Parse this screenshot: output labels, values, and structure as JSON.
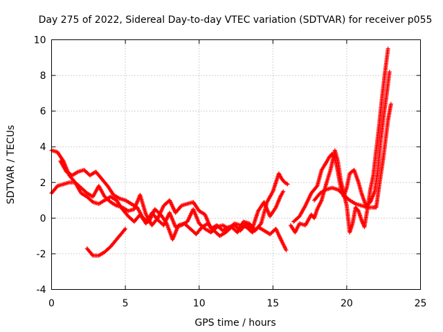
{
  "chart_data": {
    "type": "scatter",
    "title": "Day 275 of 2022, Sidereal Day-to-day VTEC variation (SDTVAR) for receiver p055",
    "xlabel": "GPS time / hours",
    "ylabel": "SDTVAR / TECUs",
    "xlim": [
      0,
      25
    ],
    "ylim": [
      -4,
      10
    ],
    "xticks": [
      0,
      5,
      10,
      15,
      20,
      25
    ],
    "yticks": [
      -4,
      -2,
      0,
      2,
      4,
      6,
      8,
      10
    ],
    "grid": true,
    "marker": "+",
    "series": [
      {
        "name": "SDTVAR",
        "color": "#ff0000",
        "tracks": [
          [
            [
              0.0,
              3.8
            ],
            [
              0.4,
              3.7
            ],
            [
              0.8,
              3.2
            ],
            [
              1.2,
              2.4
            ],
            [
              1.6,
              2.0
            ],
            [
              2.0,
              1.4
            ],
            [
              2.4,
              1.2
            ],
            [
              2.8,
              0.9
            ],
            [
              3.2,
              0.8
            ],
            [
              3.6,
              1.0
            ],
            [
              4.0,
              1.2
            ],
            [
              4.4,
              1.0
            ],
            [
              4.8,
              0.5
            ],
            [
              5.2,
              0.1
            ],
            [
              5.6,
              -0.2
            ],
            [
              6.0,
              0.2
            ],
            [
              6.4,
              -0.3
            ],
            [
              6.8,
              0.3
            ],
            [
              7.2,
              -0.1
            ],
            [
              7.6,
              -0.4
            ],
            [
              8.0,
              0.3
            ],
            [
              8.4,
              -0.5
            ],
            [
              8.8,
              -0.4
            ],
            [
              9.2,
              -0.2
            ],
            [
              9.6,
              0.5
            ],
            [
              10.0,
              -0.3
            ],
            [
              10.4,
              -0.6
            ],
            [
              10.8,
              -0.8
            ],
            [
              11.2,
              -0.5
            ],
            [
              11.6,
              -0.4
            ],
            [
              12.0,
              -0.6
            ],
            [
              12.4,
              -0.3
            ],
            [
              12.8,
              -0.4
            ],
            [
              13.2,
              -0.5
            ],
            [
              13.6,
              -0.8
            ],
            [
              14.0,
              -0.5
            ],
            [
              14.4,
              -0.7
            ],
            [
              14.8,
              -0.9
            ],
            [
              15.2,
              -0.6
            ],
            [
              15.6,
              -1.3
            ],
            [
              15.9,
              -1.8
            ]
          ],
          [
            [
              0.0,
              1.4
            ],
            [
              0.4,
              1.8
            ],
            [
              0.8,
              1.9
            ],
            [
              1.2,
              2.0
            ],
            [
              1.6,
              2.0
            ],
            [
              2.0,
              1.7
            ],
            [
              2.4,
              1.4
            ],
            [
              2.8,
              1.2
            ],
            [
              3.2,
              1.8
            ],
            [
              3.6,
              1.2
            ],
            [
              4.0,
              0.9
            ],
            [
              4.4,
              0.7
            ],
            [
              4.8,
              0.6
            ],
            [
              5.2,
              0.4
            ],
            [
              5.6,
              0.5
            ],
            [
              6.0,
              1.3
            ],
            [
              6.4,
              0.2
            ],
            [
              6.8,
              -0.4
            ],
            [
              7.2,
              0.0
            ],
            [
              7.6,
              0.7
            ],
            [
              8.0,
              1.0
            ],
            [
              8.4,
              0.3
            ],
            [
              8.8,
              0.7
            ],
            [
              9.2,
              0.8
            ],
            [
              9.6,
              0.9
            ],
            [
              10.0,
              0.4
            ],
            [
              10.4,
              0.2
            ],
            [
              10.8,
              -0.6
            ],
            [
              11.2,
              -0.4
            ],
            [
              11.6,
              -0.7
            ],
            [
              12.0,
              -0.5
            ],
            [
              12.4,
              -0.4
            ],
            [
              12.8,
              -0.7
            ],
            [
              13.2,
              -0.3
            ],
            [
              13.6,
              -0.6
            ],
            [
              14.0,
              0.4
            ],
            [
              14.4,
              0.9
            ],
            [
              14.8,
              0.1
            ],
            [
              15.2,
              0.6
            ],
            [
              15.5,
              1.2
            ],
            [
              15.7,
              1.5
            ]
          ],
          [
            [
              0.6,
              3.2
            ],
            [
              1.0,
              2.6
            ],
            [
              1.4,
              2.4
            ],
            [
              1.8,
              2.6
            ],
            [
              2.2,
              2.7
            ],
            [
              2.6,
              2.4
            ],
            [
              3.0,
              2.6
            ],
            [
              3.4,
              2.2
            ],
            [
              3.8,
              1.8
            ],
            [
              4.2,
              1.3
            ],
            [
              4.6,
              1.1
            ],
            [
              5.0,
              1.0
            ],
            [
              5.4,
              0.8
            ],
            [
              5.8,
              0.6
            ],
            [
              6.2,
              0.0
            ],
            [
              6.6,
              -0.2
            ],
            [
              7.0,
              0.5
            ],
            [
              7.4,
              0.2
            ],
            [
              7.8,
              -0.3
            ],
            [
              8.2,
              -1.2
            ],
            [
              8.6,
              -0.4
            ],
            [
              9.0,
              -0.3
            ],
            [
              9.4,
              -0.6
            ],
            [
              9.8,
              -0.9
            ],
            [
              10.2,
              -0.5
            ],
            [
              10.6,
              -0.3
            ],
            [
              11.0,
              -0.7
            ],
            [
              11.4,
              -1.0
            ],
            [
              11.8,
              -0.8
            ],
            [
              12.2,
              -0.5
            ],
            [
              12.6,
              -0.8
            ],
            [
              13.0,
              -0.2
            ],
            [
              13.4,
              -0.3
            ],
            [
              13.8,
              -0.7
            ],
            [
              14.2,
              -0.3
            ],
            [
              14.6,
              0.9
            ],
            [
              15.0,
              1.5
            ],
            [
              15.4,
              2.5
            ],
            [
              15.6,
              2.2
            ],
            [
              15.8,
              2.0
            ],
            [
              16.0,
              1.9
            ]
          ],
          [
            [
              2.4,
              -1.7
            ],
            [
              2.8,
              -2.1
            ],
            [
              3.2,
              -2.1
            ],
            [
              3.6,
              -1.9
            ],
            [
              4.0,
              -1.6
            ],
            [
              4.4,
              -1.2
            ],
            [
              4.8,
              -0.8
            ],
            [
              5.0,
              -0.6
            ]
          ],
          [
            [
              16.2,
              -0.4
            ],
            [
              16.5,
              -0.8
            ],
            [
              16.8,
              -0.3
            ],
            [
              17.2,
              -0.4
            ],
            [
              17.6,
              0.2
            ],
            [
              17.8,
              0.0
            ],
            [
              18.0,
              0.5
            ],
            [
              18.3,
              1.0
            ],
            [
              18.6,
              1.9
            ],
            [
              18.9,
              2.7
            ],
            [
              19.2,
              3.8
            ],
            [
              19.4,
              3.2
            ],
            [
              19.6,
              2.1
            ],
            [
              19.8,
              1.4
            ],
            [
              20.0,
              0.7
            ],
            [
              20.2,
              -0.8
            ],
            [
              20.4,
              -0.3
            ],
            [
              20.6,
              0.6
            ],
            [
              20.8,
              0.4
            ],
            [
              21.0,
              -0.1
            ],
            [
              21.2,
              -0.5
            ],
            [
              21.4,
              0.5
            ],
            [
              21.6,
              1.6
            ],
            [
              21.8,
              2.4
            ],
            [
              22.0,
              3.8
            ],
            [
              22.2,
              5.2
            ],
            [
              22.4,
              6.8
            ],
            [
              22.6,
              8.2
            ],
            [
              22.8,
              9.5
            ]
          ],
          [
            [
              16.4,
              -0.2
            ],
            [
              16.8,
              0.1
            ],
            [
              17.2,
              0.7
            ],
            [
              17.6,
              1.4
            ],
            [
              18.0,
              1.8
            ],
            [
              18.3,
              2.7
            ],
            [
              18.6,
              3.1
            ],
            [
              18.8,
              3.4
            ],
            [
              19.0,
              3.6
            ],
            [
              19.2,
              3.4
            ],
            [
              19.4,
              2.6
            ],
            [
              19.6,
              1.7
            ],
            [
              19.8,
              1.2
            ],
            [
              20.0,
              1.7
            ],
            [
              20.2,
              2.5
            ],
            [
              20.5,
              2.7
            ],
            [
              20.8,
              2.0
            ],
            [
              21.0,
              1.4
            ],
            [
              21.3,
              0.7
            ],
            [
              21.6,
              0.9
            ],
            [
              21.9,
              1.5
            ],
            [
              22.1,
              2.6
            ],
            [
              22.3,
              4.3
            ],
            [
              22.5,
              5.7
            ],
            [
              22.7,
              6.9
            ],
            [
              22.9,
              8.2
            ]
          ],
          [
            [
              17.8,
              1.0
            ],
            [
              18.2,
              1.4
            ],
            [
              18.6,
              1.6
            ],
            [
              19.0,
              1.7
            ],
            [
              19.4,
              1.6
            ],
            [
              19.8,
              1.3
            ],
            [
              20.2,
              1.0
            ],
            [
              20.6,
              0.8
            ],
            [
              21.0,
              0.7
            ],
            [
              21.4,
              0.6
            ],
            [
              21.8,
              0.6
            ],
            [
              22.0,
              0.6
            ],
            [
              22.2,
              1.8
            ],
            [
              22.5,
              3.5
            ],
            [
              22.8,
              5.5
            ],
            [
              23.0,
              6.4
            ]
          ]
        ]
      }
    ]
  }
}
